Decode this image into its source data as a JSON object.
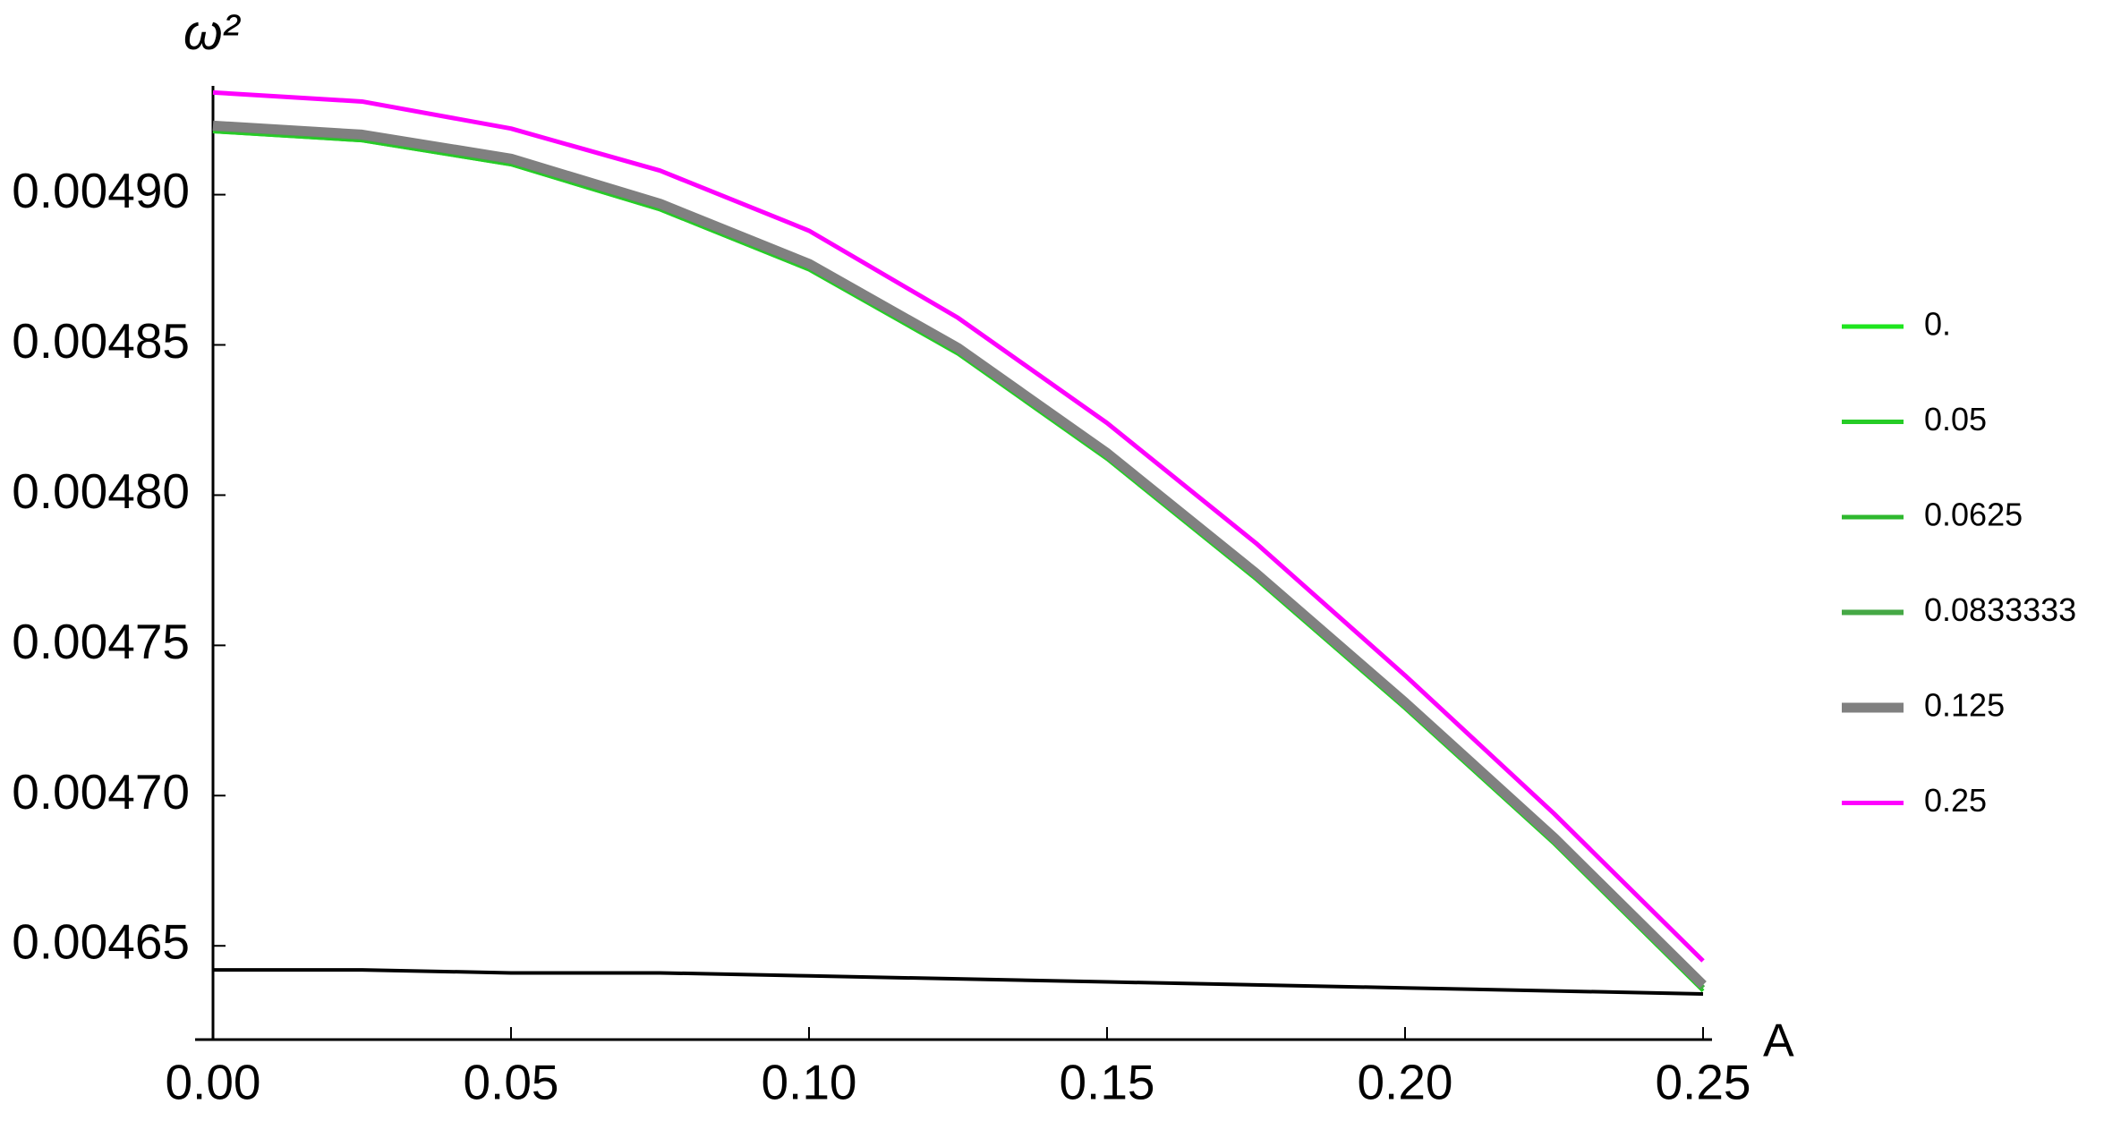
{
  "chart_data": {
    "type": "line",
    "x_label": "A",
    "y_label": "ω²",
    "x": [
      0,
      0.025,
      0.05,
      0.075,
      0.1,
      0.125,
      0.15,
      0.175,
      0.2,
      0.225,
      0.25
    ],
    "series": [
      {
        "name": "0.",
        "color": "#1ee61e",
        "line_width": 4,
        "values": [
          0.004921,
          0.004918,
          0.00491,
          0.004895,
          0.004875,
          0.004847,
          0.004812,
          0.004772,
          0.004729,
          0.004684,
          0.004635
        ]
      },
      {
        "name": "0.05",
        "color": "#26cc26",
        "line_width": 4,
        "values": [
          0.004921,
          0.004918,
          0.00491,
          0.004895,
          0.004875,
          0.004847,
          0.004812,
          0.004772,
          0.004729,
          0.004684,
          0.004635
        ]
      },
      {
        "name": "0.0625",
        "color": "#2eb82e",
        "line_width": 5,
        "values": [
          0.004922,
          0.004919,
          0.004911,
          0.004896,
          0.004876,
          0.004848,
          0.004813,
          0.004773,
          0.00473,
          0.004685,
          0.004636
        ]
      },
      {
        "name": "0.0833333",
        "color": "#45a845",
        "line_width": 6,
        "values": [
          0.004922,
          0.004919,
          0.004911,
          0.004896,
          0.004876,
          0.004848,
          0.004813,
          0.004773,
          0.00473,
          0.004685,
          0.004636
        ]
      },
      {
        "name": "0.125",
        "color": "#808080",
        "line_width": 11,
        "values": [
          0.004923,
          0.00492,
          0.004912,
          0.004897,
          0.004877,
          0.004849,
          0.004814,
          0.004774,
          0.004731,
          0.004686,
          0.004637
        ]
      },
      {
        "name": "0.25",
        "color": "#ff00ff",
        "line_width": 5,
        "values": [
          0.004934,
          0.004931,
          0.004922,
          0.004908,
          0.004888,
          0.004859,
          0.004824,
          0.004784,
          0.00474,
          0.004694,
          0.004645
        ]
      },
      {
        "color": "#000000",
        "line_width": 4,
        "values": [
          0.004642,
          0.004642,
          0.004641,
          0.004641,
          0.00464,
          0.004639,
          0.004638,
          0.004637,
          0.004636,
          0.004635,
          0.004634
        ]
      }
    ],
    "xlim": [
      0,
      0.25
    ],
    "ylim": [
      0.0046188,
      0.0049362
    ],
    "xticks": [
      {
        "value": 0,
        "label": "0.00"
      },
      {
        "value": 0.05,
        "label": "0.05"
      },
      {
        "value": 0.1,
        "label": "0.10"
      },
      {
        "value": 0.15,
        "label": "0.15"
      },
      {
        "value": 0.2,
        "label": "0.20"
      },
      {
        "value": 0.25,
        "label": "0.25"
      }
    ],
    "yticks": [
      {
        "value": 0.00465,
        "label": "0.00465"
      },
      {
        "value": 0.0047,
        "label": "0.00470"
      },
      {
        "value": 0.00475,
        "label": "0.00475"
      },
      {
        "value": 0.0048,
        "label": "0.00480"
      },
      {
        "value": 0.00485,
        "label": "0.00485"
      },
      {
        "value": 0.0049,
        "label": "0.00490"
      }
    ],
    "grid": false,
    "legend": "right"
  }
}
